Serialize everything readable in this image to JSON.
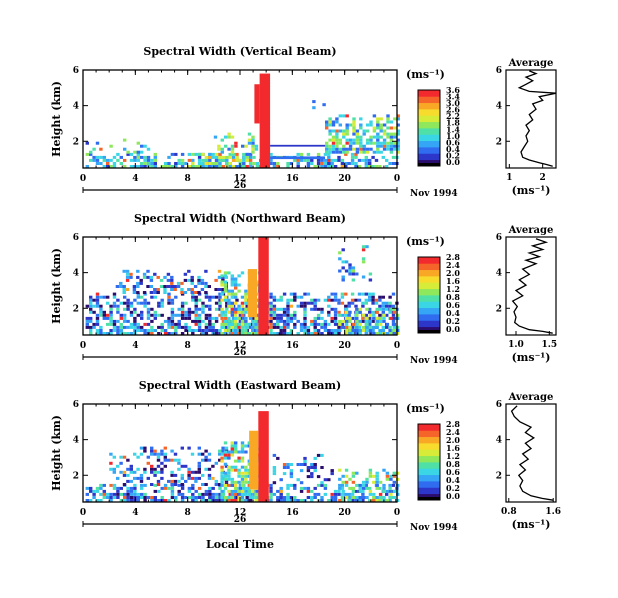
{
  "figure": {
    "xlabel": "Local Time",
    "colorbar_unit": "(ms⁻¹)",
    "average_title": "Average",
    "date_label": "Nov 1994",
    "day_label": "26"
  },
  "colormap": [
    "#2b0d6e",
    "#2c36c8",
    "#2f6cf0",
    "#35a6f5",
    "#3ad6e6",
    "#4fe0a8",
    "#8fe85c",
    "#d6ec38",
    "#f7dc2e",
    "#f9a826",
    "#f5652a",
    "#f22a2e"
  ],
  "chart_data": [
    {
      "type": "heatmap",
      "title": "Spectral Width (Vertical Beam)",
      "ylabel": "Height (km)",
      "xlim": [
        0,
        24
      ],
      "ylim": [
        0.5,
        6
      ],
      "xticks": [
        "0",
        "4",
        "8",
        "12",
        "16",
        "20",
        "0"
      ],
      "yticks": [
        "2",
        "4",
        "6"
      ],
      "colorbar": {
        "min": 0.0,
        "max": 3.6,
        "ticks": [
          "3.6",
          "3.4",
          "3.0",
          "2.6",
          "2.2",
          "1.8",
          "1.4",
          "1.0",
          "0.6",
          "0.4",
          "0.2",
          "0.0"
        ]
      },
      "regions": [
        {
          "t": [
            0.2,
            24
          ],
          "h": [
            0.5,
            1.3
          ],
          "level": 0.33,
          "density": 0.72
        },
        {
          "t": [
            0.2,
            5
          ],
          "h": [
            1.3,
            2.0
          ],
          "level": 0.35,
          "density": 0.2
        },
        {
          "t": [
            8,
            12.5
          ],
          "h": [
            0.5,
            1.3
          ],
          "level": 0.45,
          "density": 0.85
        },
        {
          "t": [
            10,
            13.5
          ],
          "h": [
            1.3,
            2.4
          ],
          "level": 0.4,
          "density": 0.45
        },
        {
          "t": [
            18.5,
            24
          ],
          "h": [
            1.3,
            3.5
          ],
          "level": 0.4,
          "density": 0.8
        },
        {
          "t": [
            17,
            19
          ],
          "h": [
            3.8,
            4.2
          ],
          "level": 0.2,
          "density": 0.35
        }
      ],
      "bands": [
        {
          "t": [
            13.5,
            14.3
          ],
          "h": [
            0.5,
            5.8
          ],
          "level": 0.97
        },
        {
          "t": [
            13.1,
            13.5
          ],
          "h": [
            3.0,
            5.2
          ],
          "level": 0.97
        },
        {
          "t": [
            14.3,
            18.5
          ],
          "h": [
            1.0,
            1.15
          ],
          "level": 0.15
        },
        {
          "t": [
            14.3,
            18.5
          ],
          "h": [
            1.7,
            1.8
          ],
          "level": 0.12
        }
      ],
      "average": {
        "xlim": [
          0.9,
          2.4
        ],
        "ylim": [
          0.5,
          6
        ],
        "xticks": [
          {
            "v": 1,
            "label": "1"
          },
          {
            "v": 2,
            "label": "2"
          }
        ],
        "yticks": [
          "2",
          "4",
          "6"
        ],
        "xlabel": "(ms⁻¹)",
        "profile": [
          [
            2.3,
            0.6
          ],
          [
            2.1,
            0.7
          ],
          [
            1.9,
            0.8
          ],
          [
            1.6,
            0.95
          ],
          [
            1.4,
            1.1
          ],
          [
            1.35,
            1.4
          ],
          [
            1.45,
            1.7
          ],
          [
            1.55,
            2.0
          ],
          [
            1.5,
            2.3
          ],
          [
            1.6,
            2.6
          ],
          [
            1.5,
            2.9
          ],
          [
            1.7,
            3.2
          ],
          [
            1.6,
            3.5
          ],
          [
            1.8,
            3.8
          ],
          [
            1.7,
            4.1
          ],
          [
            2.0,
            4.3
          ],
          [
            1.9,
            4.5
          ],
          [
            2.4,
            4.7
          ],
          [
            1.6,
            4.8
          ],
          [
            1.3,
            5.0
          ],
          [
            1.5,
            5.2
          ],
          [
            1.7,
            5.4
          ],
          [
            1.5,
            5.6
          ],
          [
            1.8,
            5.8
          ],
          [
            1.6,
            5.95
          ]
        ]
      }
    },
    {
      "type": "heatmap",
      "title": "Spectral Width (Northward Beam)",
      "ylabel": "Height (km)",
      "xlim": [
        0,
        24
      ],
      "ylim": [
        0.5,
        6
      ],
      "xticks": [
        "0",
        "4",
        "8",
        "12",
        "16",
        "20",
        "0"
      ],
      "yticks": [
        "2",
        "4",
        "6"
      ],
      "colorbar": {
        "min": 0.0,
        "max": 2.8,
        "ticks": [
          "2.8",
          "2.4",
          "2.0",
          "1.6",
          "1.2",
          "0.8",
          "0.6",
          "0.4",
          "0.2",
          "0.0"
        ]
      },
      "regions": [
        {
          "t": [
            0.2,
            24
          ],
          "h": [
            0.5,
            2.8
          ],
          "level": 0.2,
          "density": 0.72
        },
        {
          "t": [
            2.5,
            11
          ],
          "h": [
            2.8,
            4.0
          ],
          "level": 0.17,
          "density": 0.55
        },
        {
          "t": [
            10.5,
            13.5
          ],
          "h": [
            0.5,
            4.0
          ],
          "level": 0.45,
          "density": 0.8
        },
        {
          "t": [
            19.5,
            24
          ],
          "h": [
            0.5,
            2.0
          ],
          "level": 0.42,
          "density": 0.7
        },
        {
          "t": [
            19.5,
            22
          ],
          "h": [
            3.5,
            5.5
          ],
          "level": 0.3,
          "density": 0.3
        }
      ],
      "bands": [
        {
          "t": [
            13.4,
            14.2
          ],
          "h": [
            0.5,
            6.0
          ],
          "level": 0.97
        },
        {
          "t": [
            12.6,
            13.3
          ],
          "h": [
            1.5,
            4.2
          ],
          "level": 0.85
        }
      ],
      "average": {
        "xlim": [
          0.85,
          1.6
        ],
        "ylim": [
          0.5,
          6
        ],
        "xticks": [
          {
            "v": 1.0,
            "label": "1.0"
          },
          {
            "v": 1.5,
            "label": "1.5"
          }
        ],
        "yticks": [
          "2",
          "4",
          "6"
        ],
        "xlabel": "(ms⁻¹)",
        "profile": [
          [
            1.55,
            0.6
          ],
          [
            1.4,
            0.7
          ],
          [
            1.2,
            0.8
          ],
          [
            1.05,
            1.0
          ],
          [
            0.98,
            1.2
          ],
          [
            1.0,
            1.5
          ],
          [
            0.97,
            1.8
          ],
          [
            1.02,
            2.1
          ],
          [
            0.95,
            2.4
          ],
          [
            1.1,
            2.7
          ],
          [
            1.0,
            3.0
          ],
          [
            1.15,
            3.3
          ],
          [
            1.05,
            3.6
          ],
          [
            1.2,
            3.9
          ],
          [
            1.1,
            4.2
          ],
          [
            1.3,
            4.5
          ],
          [
            1.15,
            4.7
          ],
          [
            1.35,
            4.9
          ],
          [
            1.2,
            5.1
          ],
          [
            1.4,
            5.3
          ],
          [
            1.25,
            5.5
          ],
          [
            1.45,
            5.7
          ],
          [
            1.3,
            5.9
          ]
        ]
      }
    },
    {
      "type": "heatmap",
      "title": "Spectral Width (Eastward Beam)",
      "ylabel": "Height (km)",
      "xlim": [
        0,
        24
      ],
      "ylim": [
        0.5,
        6
      ],
      "xticks": [
        "0",
        "4",
        "8",
        "12",
        "16",
        "20",
        "0"
      ],
      "yticks": [
        "2",
        "4",
        "6"
      ],
      "colorbar": {
        "min": 0.0,
        "max": 2.8,
        "ticks": [
          "2.8",
          "2.4",
          "2.0",
          "1.6",
          "1.2",
          "0.8",
          "0.6",
          "0.4",
          "0.2",
          "0.0"
        ]
      },
      "regions": [
        {
          "t": [
            0.2,
            24
          ],
          "h": [
            0.5,
            1.4
          ],
          "level": 0.25,
          "density": 0.7
        },
        {
          "t": [
            2,
            11
          ],
          "h": [
            1.4,
            3.5
          ],
          "level": 0.17,
          "density": 0.45
        },
        {
          "t": [
            10.5,
            13.5
          ],
          "h": [
            0.5,
            3.8
          ],
          "level": 0.45,
          "density": 0.8
        },
        {
          "t": [
            19.5,
            24
          ],
          "h": [
            0.5,
            2.2
          ],
          "level": 0.42,
          "density": 0.6
        },
        {
          "t": [
            14.5,
            19
          ],
          "h": [
            1.5,
            3.2
          ],
          "level": 0.15,
          "density": 0.35
        }
      ],
      "bands": [
        {
          "t": [
            13.4,
            14.2
          ],
          "h": [
            0.5,
            5.6
          ],
          "level": 0.97
        },
        {
          "t": [
            12.7,
            13.4
          ],
          "h": [
            1.2,
            4.5
          ],
          "level": 0.85
        }
      ],
      "average": {
        "xlim": [
          0.75,
          1.65
        ],
        "ylim": [
          0.5,
          6
        ],
        "xticks": [
          {
            "v": 0.8,
            "label": "0.8"
          },
          {
            "v": 1.6,
            "label": "1.6"
          }
        ],
        "yticks": [
          "2",
          "4",
          "6"
        ],
        "xlabel": "(ms⁻¹)",
        "profile": [
          [
            1.6,
            0.6
          ],
          [
            1.4,
            0.7
          ],
          [
            1.2,
            0.85
          ],
          [
            1.05,
            1.1
          ],
          [
            1.0,
            1.4
          ],
          [
            1.05,
            1.7
          ],
          [
            0.98,
            2.0
          ],
          [
            1.1,
            2.3
          ],
          [
            1.0,
            2.6
          ],
          [
            1.15,
            2.9
          ],
          [
            1.05,
            3.2
          ],
          [
            1.2,
            3.5
          ],
          [
            1.1,
            3.8
          ],
          [
            1.25,
            4.1
          ],
          [
            1.1,
            4.4
          ],
          [
            1.2,
            4.7
          ],
          [
            1.0,
            5.0
          ],
          [
            0.9,
            5.3
          ],
          [
            0.85,
            5.6
          ],
          [
            0.95,
            5.9
          ]
        ]
      }
    }
  ]
}
